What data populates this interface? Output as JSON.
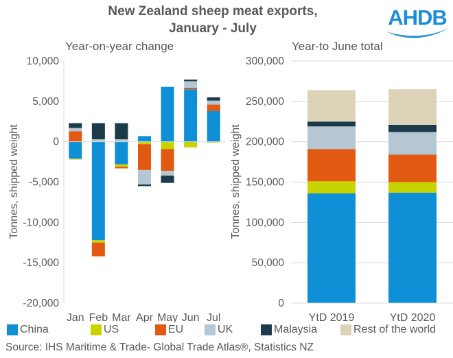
{
  "title_line1": "New Zealand sheep meat exports,",
  "title_line2": "January - July",
  "logo_text": "AHDB",
  "legend": [
    {
      "name": "China",
      "color": "#0f8fd6"
    },
    {
      "name": "US",
      "color": "#c8d400"
    },
    {
      "name": "EU",
      "color": "#e25912"
    },
    {
      "name": "UK",
      "color": "#b4c7d2"
    },
    {
      "name": "Malaysia",
      "color": "#1b3a4a"
    },
    {
      "name": "Rest of the world",
      "color": "#ddd3b8"
    }
  ],
  "source": "Source: IHS Maritime & Trade- Global Trade Atlas®, Statistics NZ",
  "chart_data": [
    {
      "type": "bar",
      "stacked": true,
      "subtitle": "Year-on-year change",
      "ylabel": "Tonnes, shipped weight",
      "ylim": [
        -20000,
        10000
      ],
      "yticks": [
        10000,
        5000,
        0,
        -5000,
        -10000,
        -15000,
        -20000
      ],
      "ytick_labels": [
        "10,000",
        "5,000",
        "0",
        "-5,000",
        "-10,000",
        "-15,000",
        "-20,000"
      ],
      "categories": [
        "Jan",
        "Feb",
        "Mar",
        "Apr",
        "May",
        "Jun",
        "Jul"
      ],
      "series": [
        {
          "name": "China",
          "values": [
            -2100,
            -12200,
            -2800,
            700,
            6800,
            6500,
            3800
          ]
        },
        {
          "name": "US",
          "values": [
            -100,
            -300,
            -300,
            -300,
            -900,
            -700,
            -100
          ]
        },
        {
          "name": "EU",
          "values": [
            1300,
            -1700,
            -200,
            -3200,
            -2700,
            200,
            800
          ]
        },
        {
          "name": "UK",
          "values": [
            400,
            300,
            300,
            -1800,
            -600,
            800,
            500
          ]
        },
        {
          "name": "Malaysia",
          "values": [
            600,
            2000,
            2000,
            -200,
            -900,
            200,
            400
          ]
        },
        {
          "name": "Rest of the world",
          "values": [
            0,
            0,
            0,
            0,
            0,
            0,
            0
          ]
        }
      ]
    },
    {
      "type": "bar",
      "stacked": true,
      "subtitle": "Year-to June total",
      "ylabel": "Tonnes, shipped weight",
      "ylim": [
        0,
        300000
      ],
      "yticks": [
        300000,
        250000,
        200000,
        150000,
        100000,
        50000,
        0
      ],
      "ytick_labels": [
        "300,000",
        "250,000",
        "200,000",
        "150,000",
        "100,000",
        "50,000",
        "0"
      ],
      "categories": [
        "YtD 2019",
        "YtD 2020"
      ],
      "series": [
        {
          "name": "China",
          "values": [
            136000,
            137000
          ]
        },
        {
          "name": "US",
          "values": [
            15000,
            13000
          ]
        },
        {
          "name": "EU",
          "values": [
            40000,
            34000
          ]
        },
        {
          "name": "UK",
          "values": [
            28000,
            28000
          ]
        },
        {
          "name": "Malaysia",
          "values": [
            6000,
            9000
          ]
        },
        {
          "name": "Rest of the world",
          "values": [
            39000,
            44000
          ]
        }
      ]
    }
  ]
}
